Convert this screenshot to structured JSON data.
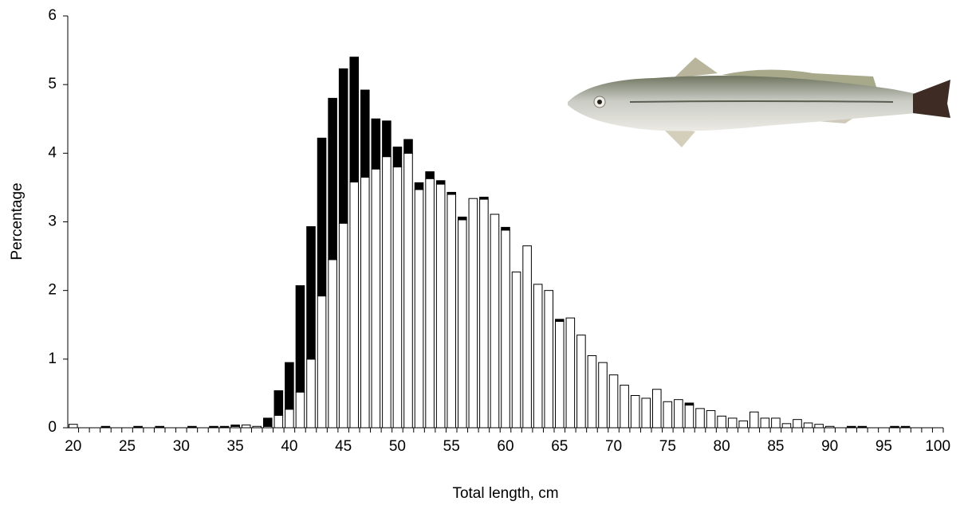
{
  "chart_data": {
    "type": "bar",
    "stacked": true,
    "x_label": "Total length, cm",
    "y_label": "Percentage",
    "x": [
      20,
      21,
      22,
      23,
      24,
      25,
      26,
      27,
      28,
      29,
      30,
      31,
      32,
      33,
      34,
      35,
      36,
      37,
      38,
      39,
      40,
      41,
      42,
      43,
      44,
      45,
      46,
      47,
      48,
      49,
      50,
      51,
      52,
      53,
      54,
      55,
      56,
      57,
      58,
      59,
      60,
      61,
      62,
      63,
      64,
      65,
      66,
      67,
      68,
      69,
      70,
      71,
      72,
      73,
      74,
      75,
      76,
      77,
      78,
      79,
      80,
      81,
      82,
      83,
      84,
      85,
      86,
      87,
      88,
      89,
      90,
      91,
      92,
      93,
      94,
      95,
      96,
      97,
      98,
      99,
      100
    ],
    "series": [
      {
        "color": "#ffffff",
        "values": [
          0.05,
          0,
          0,
          0,
          0,
          0,
          0,
          0,
          0,
          0,
          0,
          0,
          0,
          0,
          0,
          0.02,
          0.04,
          0.02,
          0.02,
          0.18,
          0.27,
          0.52,
          1.0,
          1.92,
          2.45,
          2.98,
          3.58,
          3.65,
          3.77,
          3.95,
          3.8,
          4.0,
          3.47,
          3.63,
          3.55,
          3.4,
          3.03,
          3.34,
          3.33,
          3.11,
          2.88,
          2.27,
          2.65,
          2.09,
          2.0,
          1.55,
          1.6,
          1.35,
          1.05,
          0.95,
          0.77,
          0.62,
          0.47,
          0.43,
          0.56,
          0.38,
          0.41,
          0.33,
          0.28,
          0.25,
          0.17,
          0.14,
          0.1,
          0.23,
          0.14,
          0.14,
          0.06,
          0.12,
          0.07,
          0.05,
          0.02,
          0,
          0,
          0,
          0,
          0,
          0,
          0,
          0,
          0,
          0
        ]
      },
      {
        "color": "#000000",
        "values": [
          0,
          0,
          0,
          0.02,
          0,
          0,
          0.02,
          0,
          0.02,
          0,
          0,
          0.02,
          0,
          0.02,
          0.02,
          0.02,
          0,
          0,
          0.12,
          0.36,
          0.68,
          1.55,
          1.93,
          2.3,
          2.35,
          2.25,
          1.82,
          1.27,
          0.73,
          0.52,
          0.29,
          0.2,
          0.1,
          0.1,
          0.05,
          0.03,
          0.04,
          0,
          0.03,
          0,
          0.04,
          0,
          0,
          0,
          0,
          0.03,
          0,
          0,
          0,
          0,
          0,
          0,
          0,
          0,
          0,
          0,
          0,
          0.03,
          0,
          0,
          0,
          0,
          0,
          0,
          0,
          0,
          0,
          0,
          0,
          0,
          0,
          0,
          0.02,
          0.02,
          0,
          0,
          0.02,
          0.02,
          0,
          0,
          0
        ]
      }
    ],
    "xlim": [
      19.5,
      100.5
    ],
    "xticks": [
      20,
      25,
      30,
      35,
      40,
      45,
      50,
      55,
      60,
      65,
      70,
      75,
      80,
      85,
      90,
      95,
      100
    ],
    "ylim": [
      0,
      6
    ],
    "yticks": [
      0,
      1,
      2,
      3,
      4,
      5,
      6
    ],
    "grid": false
  }
}
